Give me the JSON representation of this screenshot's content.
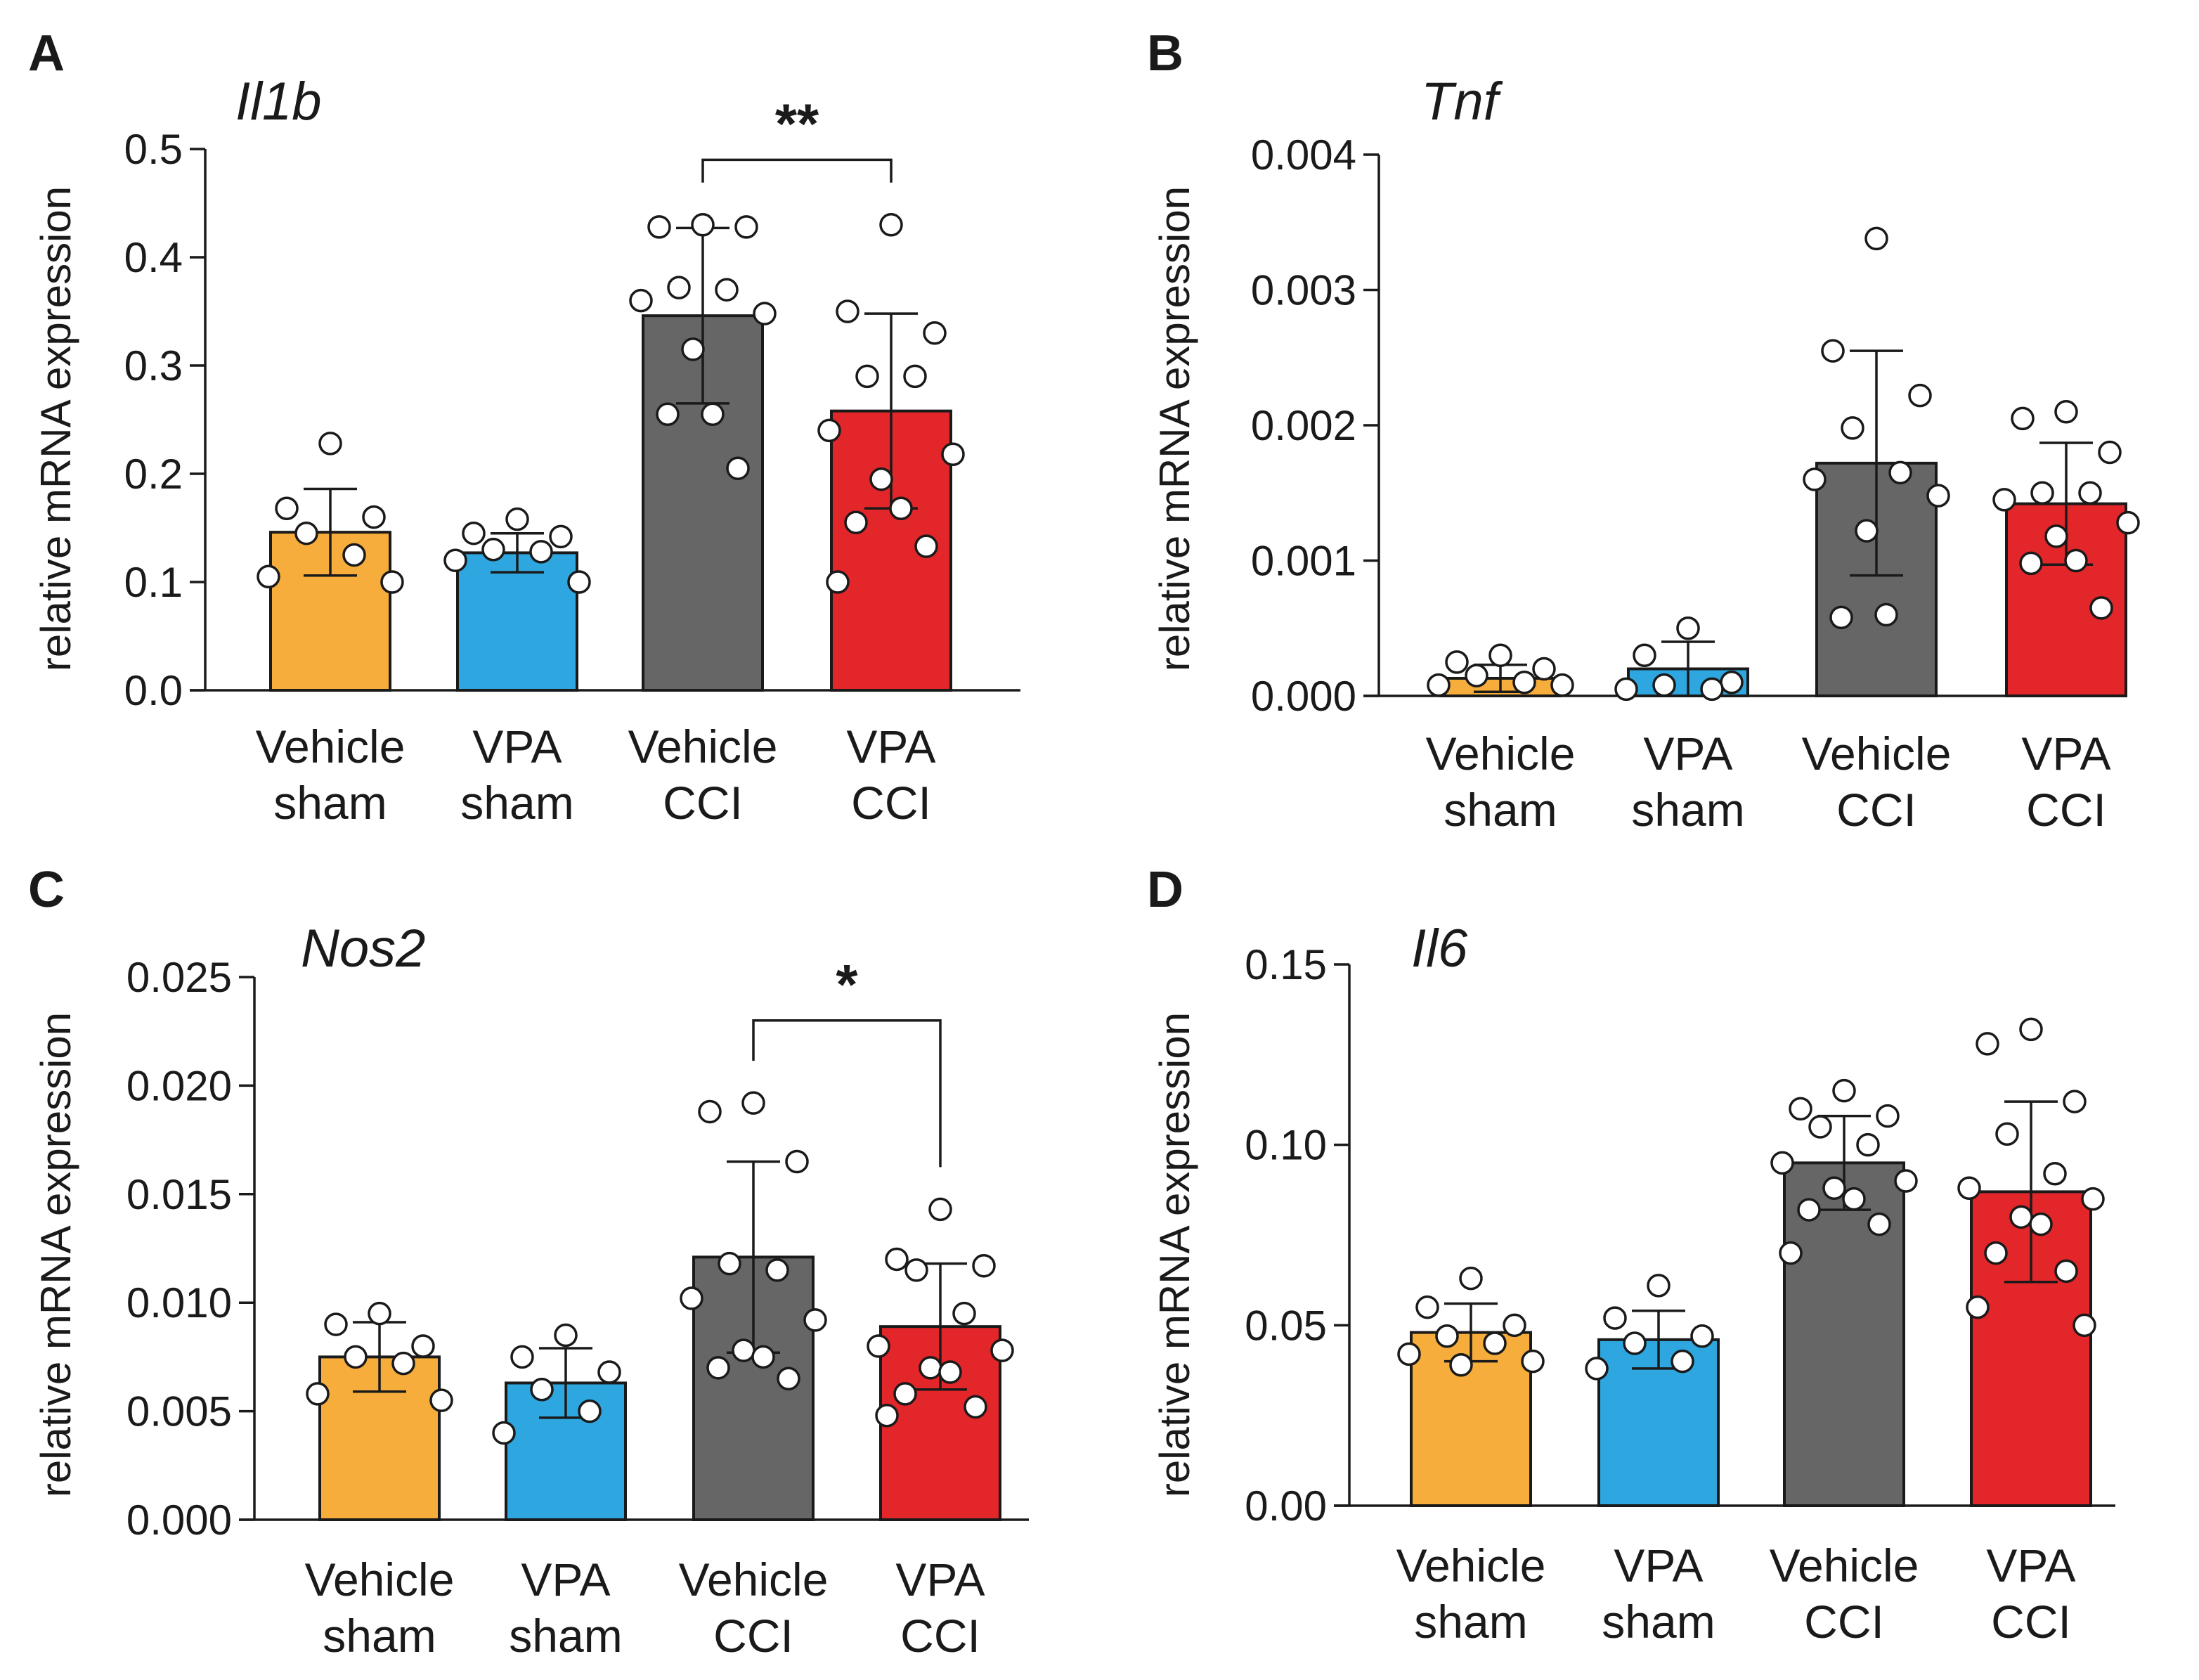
{
  "colors": {
    "vehicle_sham": "#f6ad3c",
    "vpa_sham": "#2ea7e0",
    "vehicle_cci": "#666666",
    "vpa_cci": "#e2262a",
    "axis": "#1a1a1a"
  },
  "chart_data": [
    {
      "type": "bar",
      "panel": "A",
      "title": "Il1b",
      "ylabel": "relative mRNA expression",
      "ylim": [
        0,
        0.5
      ],
      "yticks": [
        0.0,
        0.1,
        0.2,
        0.3,
        0.4,
        0.5
      ],
      "ytick_labels": [
        "0.0",
        "0.1",
        "0.2",
        "0.3",
        "0.4",
        "0.5"
      ],
      "categories": [
        [
          "Vehicle",
          "sham"
        ],
        [
          "VPA",
          "sham"
        ],
        [
          "Vehicle",
          "CCI"
        ],
        [
          "VPA",
          "CCI"
        ]
      ],
      "means": [
        0.146,
        0.127,
        0.346,
        0.258
      ],
      "sd": [
        0.04,
        0.018,
        0.081,
        0.09
      ],
      "points": [
        [
          0.228,
          0.168,
          0.16,
          0.145,
          0.125,
          0.105,
          0.1
        ],
        [
          0.158,
          0.145,
          0.142,
          0.13,
          0.128,
          0.12,
          0.1
        ],
        [
          0.43,
          0.428,
          0.428,
          0.372,
          0.37,
          0.36,
          0.348,
          0.315,
          0.255,
          0.255,
          0.205
        ],
        [
          0.43,
          0.35,
          0.33,
          0.29,
          0.29,
          0.24,
          0.218,
          0.195,
          0.168,
          0.155,
          0.133,
          0.1
        ]
      ],
      "significance": [
        {
          "from": 2,
          "to": 3,
          "label": "**",
          "y": 0.49
        }
      ]
    },
    {
      "type": "bar",
      "panel": "B",
      "title": "Tnf",
      "ylabel": "relative mRNA expression",
      "ylim": [
        0,
        0.004
      ],
      "yticks": [
        0.0,
        0.001,
        0.002,
        0.003,
        0.004
      ],
      "ytick_labels": [
        "0.000",
        "0.001",
        "0.002",
        "0.003",
        "0.004"
      ],
      "categories": [
        [
          "Vehicle",
          "sham"
        ],
        [
          "VPA",
          "sham"
        ],
        [
          "Vehicle",
          "CCI"
        ],
        [
          "VPA",
          "CCI"
        ]
      ],
      "means": [
        0.00013,
        0.0002,
        0.00172,
        0.00142
      ],
      "sd": [
        0.0001,
        0.0002,
        0.00083,
        0.00045
      ],
      "points": [
        [
          0.0003,
          0.00025,
          0.0002,
          0.00015,
          0.0001,
          8e-05,
          8e-05
        ],
        [
          0.0005,
          0.0003,
          0.0001,
          8e-05,
          5e-05,
          5e-05
        ],
        [
          0.00338,
          0.00255,
          0.00222,
          0.00198,
          0.00165,
          0.0016,
          0.00148,
          0.00122,
          0.0006,
          0.00058
        ],
        [
          0.0021,
          0.00205,
          0.0018,
          0.0015,
          0.0015,
          0.00145,
          0.00128,
          0.00118,
          0.001,
          0.00098,
          0.00065
        ]
      ],
      "significance": []
    },
    {
      "type": "bar",
      "panel": "C",
      "title": "Nos2",
      "ylabel": "relative mRNA expression",
      "ylim": [
        0,
        0.025
      ],
      "yticks": [
        0.0,
        0.005,
        0.01,
        0.015,
        0.02,
        0.025
      ],
      "ytick_labels": [
        "0.000",
        "0.005",
        "0.010",
        "0.015",
        "0.020",
        "0.025"
      ],
      "categories": [
        [
          "Vehicle",
          "sham"
        ],
        [
          "VPA",
          "sham"
        ],
        [
          "Vehicle",
          "CCI"
        ],
        [
          "VPA",
          "CCI"
        ]
      ],
      "means": [
        0.0075,
        0.0063,
        0.0121,
        0.0089
      ],
      "sd": [
        0.0016,
        0.0016,
        0.0044,
        0.0029
      ],
      "points": [
        [
          0.0095,
          0.009,
          0.008,
          0.0075,
          0.0072,
          0.0058,
          0.0055
        ],
        [
          0.0085,
          0.0075,
          0.0068,
          0.006,
          0.005,
          0.004
        ],
        [
          0.0192,
          0.0188,
          0.0165,
          0.0118,
          0.0115,
          0.0102,
          0.0092,
          0.0078,
          0.0075,
          0.007,
          0.0065
        ],
        [
          0.0143,
          0.012,
          0.0117,
          0.0115,
          0.0095,
          0.008,
          0.0078,
          0.007,
          0.0068,
          0.0058,
          0.0052,
          0.0048
        ]
      ],
      "significance": [
        {
          "from": 2,
          "to": 3,
          "label": "*",
          "y": 0.023
        }
      ]
    },
    {
      "type": "bar",
      "panel": "D",
      "title": "Il6",
      "ylabel": "relative mRNA expression",
      "ylim": [
        0,
        0.15
      ],
      "yticks": [
        0.0,
        0.05,
        0.1,
        0.15
      ],
      "ytick_labels": [
        "0.00",
        "0.05",
        "0.10",
        "0.15"
      ],
      "categories": [
        [
          "Vehicle",
          "sham"
        ],
        [
          "VPA",
          "sham"
        ],
        [
          "Vehicle",
          "CCI"
        ],
        [
          "VPA",
          "CCI"
        ]
      ],
      "means": [
        0.048,
        0.046,
        0.095,
        0.087
      ],
      "sd": [
        0.008,
        0.008,
        0.013,
        0.025
      ],
      "points": [
        [
          0.063,
          0.055,
          0.05,
          0.047,
          0.045,
          0.042,
          0.04,
          0.039
        ],
        [
          0.061,
          0.052,
          0.047,
          0.045,
          0.04,
          0.038
        ],
        [
          0.115,
          0.11,
          0.108,
          0.105,
          0.1,
          0.095,
          0.09,
          0.088,
          0.085,
          0.082,
          0.078,
          0.07
        ],
        [
          0.132,
          0.128,
          0.112,
          0.103,
          0.092,
          0.088,
          0.085,
          0.08,
          0.078,
          0.07,
          0.065,
          0.055,
          0.05
        ]
      ],
      "significance": []
    }
  ]
}
